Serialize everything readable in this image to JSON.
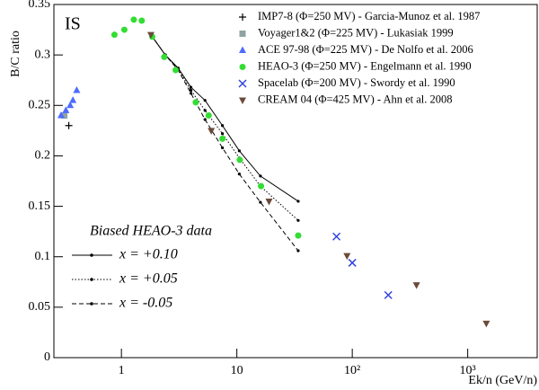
{
  "chart_data": {
    "type": "scatter",
    "annotation": "IS",
    "xlabel": "Ek/n (GeV/n)",
    "ylabel": "B/C ratio",
    "xscale": "log",
    "xlim": [
      0.26,
      4000
    ],
    "ylim": [
      0,
      0.35
    ],
    "xticks": [
      1,
      10,
      {
        "value": 100,
        "label": "10²"
      },
      {
        "value": 1000,
        "label": "10³"
      }
    ],
    "yticks": [
      0,
      0.05,
      0.1,
      0.15,
      0.2,
      0.25,
      0.3,
      0.35
    ],
    "series": [
      {
        "name": "IMP7-8 (Φ=250 MV) - Garcia-Munoz et al. 1987",
        "color": "#000000",
        "marker": "plus",
        "x": [
          0.35
        ],
        "values": [
          0.23
        ]
      },
      {
        "name": "Voyager1&2 (Φ=225 MV) - Lukasiak 1999",
        "color": "#8fa3a3",
        "marker": "square",
        "x": [
          0.32
        ],
        "values": [
          0.24
        ]
      },
      {
        "name": "ACE 97-98 (Φ=225 MV) - De Nolfo et al. 2006",
        "color": "#4d6bff",
        "marker": "triangle-up",
        "x": [
          0.3,
          0.33,
          0.36,
          0.38,
          0.41
        ],
        "values": [
          0.24,
          0.245,
          0.25,
          0.255,
          0.265
        ]
      },
      {
        "name": "HEAO-3 (Φ=250 MV) - Engelmann et al. 1990",
        "color": "#33dd33",
        "marker": "circle",
        "x": [
          0.87,
          1.06,
          1.28,
          1.5,
          1.85,
          2.35,
          2.95,
          4.4,
          5.7,
          7.5,
          10.6,
          16.2,
          34
        ],
        "values": [
          0.32,
          0.325,
          0.335,
          0.334,
          0.318,
          0.298,
          0.285,
          0.253,
          0.24,
          0.217,
          0.196,
          0.17,
          0.121
        ]
      },
      {
        "name": "Spacelab (Φ=200 MV) - Swordy et al. 1990",
        "color": "#3344dd",
        "marker": "cross",
        "x": [
          73,
          100,
          205
        ],
        "values": [
          0.12,
          0.094,
          0.062
        ]
      },
      {
        "name": "CREAM 04 (Φ=425 MV) - Ahn et al. 2008",
        "color": "#6b4a3a",
        "marker": "triangle-down",
        "x": [
          1.8,
          6,
          19,
          90,
          360,
          1450
        ],
        "values": [
          0.32,
          0.225,
          0.155,
          0.101,
          0.072,
          0.034
        ]
      }
    ],
    "model_legend_title": "Biased HEAO-3 data",
    "model_series": [
      {
        "name": "x = +0.10",
        "color": "#000000",
        "dash": "solid",
        "x": [
          1.8,
          2.4,
          3.1,
          4.0,
          5.3,
          7.5,
          10.5,
          16,
          34
        ],
        "values": [
          0.32,
          0.3,
          0.287,
          0.268,
          0.255,
          0.23,
          0.205,
          0.18,
          0.155
        ]
      },
      {
        "name": "x = +0.05",
        "color": "#000000",
        "dash": "dotted",
        "x": [
          1.8,
          2.4,
          3.1,
          4.0,
          5.3,
          7.5,
          10.5,
          16,
          34
        ],
        "values": [
          0.32,
          0.3,
          0.286,
          0.265,
          0.245,
          0.222,
          0.198,
          0.17,
          0.136
        ]
      },
      {
        "name": "x = -0.05",
        "color": "#000000",
        "dash": "dashed",
        "x": [
          1.8,
          2.4,
          3.1,
          4.0,
          5.3,
          7.5,
          10.5,
          16,
          34
        ],
        "values": [
          0.32,
          0.3,
          0.285,
          0.262,
          0.236,
          0.208,
          0.182,
          0.154,
          0.106
        ]
      }
    ]
  }
}
